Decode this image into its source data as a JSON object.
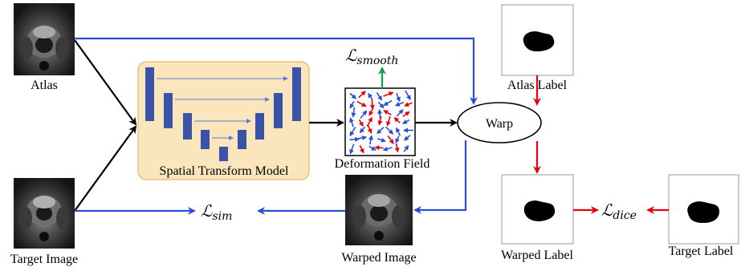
{
  "colors": {
    "blue_arrow": "#2a4fd6",
    "black_arrow": "#000000",
    "red_arrow": "#e8000b",
    "green_arrow": "#0ea04a",
    "model_bg": "#fbe5bd",
    "model_border": "#eeb36a",
    "unet_block": "#3a52a8"
  },
  "labels": {
    "atlas": "Atlas",
    "target_image": "Target Image",
    "model": "Spatial Transform Model",
    "deformation_field": "Deformation Field",
    "warp": "Warp",
    "warped_image": "Warped Image",
    "atlas_label": "Atlas Label",
    "warped_label": "Warped Label",
    "target_label": "Target Label"
  },
  "losses": {
    "smooth": {
      "symbol": "ℒ",
      "sub": "smooth"
    },
    "sim": {
      "symbol": "ℒ",
      "sub": "sim"
    },
    "dice": {
      "symbol": "ℒ",
      "sub": "dice"
    }
  },
  "icons": {
    "image_thumbnails": "prostate-mri-icon",
    "label_masks": "segmentation-mask-icon",
    "field": "vector-field-icon"
  }
}
